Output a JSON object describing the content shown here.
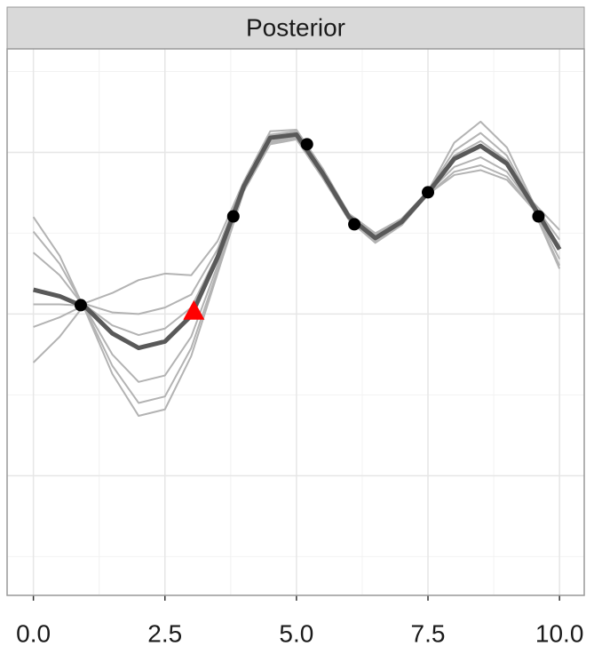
{
  "chart_data": {
    "type": "line",
    "title": "Posterior",
    "x": [
      0,
      0.5,
      1,
      1.5,
      2,
      2.5,
      3,
      3.5,
      4,
      4.5,
      5,
      5.5,
      6,
      6.5,
      7,
      7.5,
      8,
      8.5,
      9,
      9.5,
      10
    ],
    "series": [
      {
        "color": "#b3b3b3",
        "values": [
          -0.3,
          -0.14,
          0.07,
          0.13,
          0.21,
          0.25,
          0.24,
          0.45,
          0.82,
          1.13,
          1.14,
          0.9,
          0.62,
          0.5,
          0.59,
          0.76,
          1.06,
          1.19,
          1.03,
          0.69,
          0.52
        ]
      },
      {
        "color": "#b3b3b3",
        "values": [
          0.6,
          0.36,
          0.01,
          -0.37,
          -0.63,
          -0.59,
          -0.26,
          0.25,
          0.76,
          1.05,
          1.08,
          0.84,
          0.58,
          0.44,
          0.55,
          0.74,
          0.86,
          0.89,
          0.83,
          0.65,
          0.28
        ]
      },
      {
        "color": "#b3b3b3",
        "values": [
          -0.08,
          -0.02,
          0.06,
          0.01,
          0.0,
          0.04,
          0.12,
          0.4,
          0.81,
          1.11,
          1.13,
          0.89,
          0.61,
          0.49,
          0.58,
          0.76,
          1.01,
          1.12,
          0.98,
          0.68,
          0.46
        ]
      },
      {
        "color": "#b3b3b3",
        "values": [
          0.38,
          0.24,
          0.03,
          -0.25,
          -0.42,
          -0.38,
          -0.14,
          0.3,
          0.78,
          1.07,
          1.1,
          0.86,
          0.59,
          0.46,
          0.56,
          0.75,
          0.91,
          0.97,
          0.88,
          0.66,
          0.34
        ]
      },
      {
        "color": "#b3b3b3",
        "values": [
          0.06,
          0.06,
          0.05,
          -0.07,
          -0.13,
          -0.09,
          0.04,
          0.37,
          0.8,
          1.1,
          1.12,
          0.88,
          0.6,
          0.48,
          0.57,
          0.75,
          0.98,
          1.07,
          0.95,
          0.67,
          0.42
        ]
      },
      {
        "color": "#b3b3b3",
        "values": [
          0.51,
          0.31,
          0.02,
          -0.32,
          -0.55,
          -0.51,
          -0.21,
          0.27,
          0.77,
          1.06,
          1.09,
          0.85,
          0.58,
          0.45,
          0.55,
          0.74,
          0.88,
          0.92,
          0.85,
          0.65,
          0.3
        ]
      },
      {
        "color": "#595959",
        "values": [
          0.15,
          0.11,
          0.04,
          -0.12,
          -0.21,
          -0.17,
          -0.01,
          0.35,
          0.79,
          1.09,
          1.11,
          0.87,
          0.6,
          0.47,
          0.57,
          0.75,
          0.96,
          1.04,
          0.93,
          0.67,
          0.4
        ]
      }
    ],
    "observed": {
      "color": "#000000",
      "x": [
        0.9,
        3.8,
        5.2,
        6.1,
        7.5,
        9.6
      ],
      "y": [
        0.055,
        0.604,
        1.05,
        0.555,
        0.753,
        0.604
      ]
    },
    "candidate": {
      "color": "#ff0000",
      "x": 3.05,
      "y": 0.02
    },
    "xlim": [
      -0.5,
      10.47
    ],
    "ylim": [
      -1.74,
      1.64
    ],
    "xticks": [
      {
        "value": 0,
        "label": "0.0"
      },
      {
        "value": 2.5,
        "label": "2.5"
      },
      {
        "value": 5,
        "label": "5.0"
      },
      {
        "value": 7.5,
        "label": "7.5"
      },
      {
        "value": 10,
        "label": "10.0"
      }
    ],
    "xminor": [
      1.25,
      3.75,
      6.25,
      8.75
    ],
    "ygrid": [
      -1,
      0,
      1
    ],
    "yminor": [
      -1.5,
      -0.5,
      0.5,
      1.5
    ],
    "grid": true
  }
}
